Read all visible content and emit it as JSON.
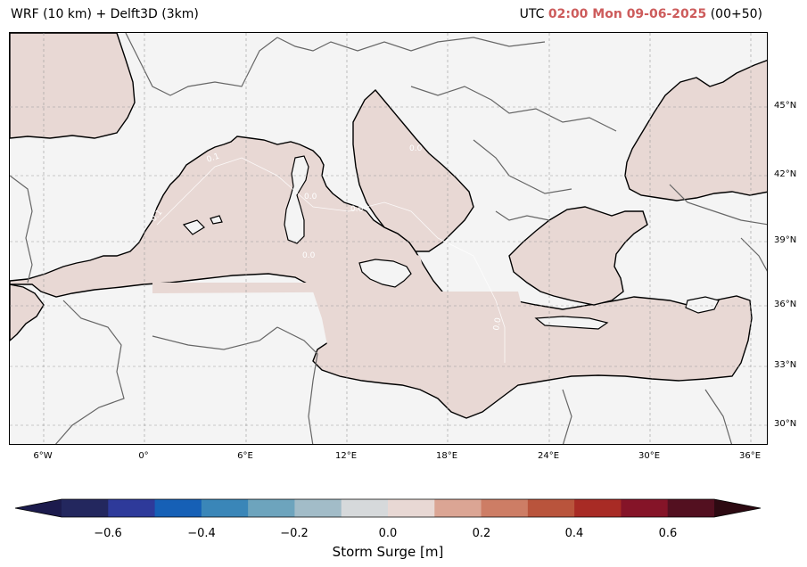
{
  "header": {
    "model_label": "WRF (10 km) + Delft3D (3km)",
    "utc_prefix": "UTC",
    "time_text": "02:00 Mon 09-06-2025",
    "lead_text": "(00+50)"
  },
  "map": {
    "lat_labels": [
      "45°N",
      "42°N",
      "39°N",
      "36°N",
      "33°N",
      "30°N"
    ],
    "lon_labels": [
      "6°W",
      "0°",
      "6°E",
      "12°E",
      "18°E",
      "24°E",
      "30°E",
      "36°E"
    ],
    "contour_labels": [
      "0.1",
      "0.0",
      "0.0",
      "0.1",
      "0.0",
      "0.0",
      "0.0"
    ],
    "sea_color": "#e8d8d4",
    "land_color": "#f4f4f4"
  },
  "colorbar": {
    "label": "Storm Surge [m]",
    "ticks": [
      "−0.6",
      "−0.4",
      "−0.2",
      "0.0",
      "0.2",
      "0.4",
      "0.6"
    ],
    "colors": [
      "#1c1b4d",
      "#23275e",
      "#2e3a9a",
      "#1660b6",
      "#3a86b8",
      "#6da4bd",
      "#a2bcc8",
      "#d6d9db",
      "#e8d8d4",
      "#dba594",
      "#cd7d65",
      "#b9543c",
      "#a82b25",
      "#851428",
      "#531020",
      "#2d0a12"
    ]
  }
}
